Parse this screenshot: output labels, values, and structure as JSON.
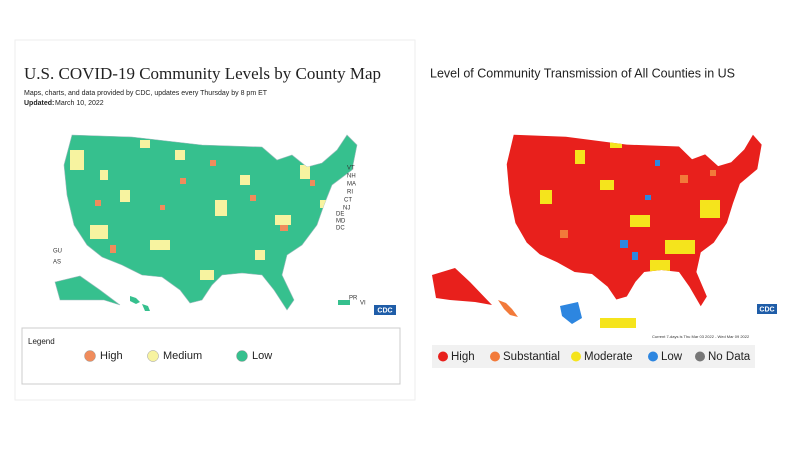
{
  "left_panel": {
    "title": "U.S. COVID-19 Community Levels by County Map",
    "subtitle": "Maps, charts, and data provided by CDC, updates every Thursday by 8 pm ET",
    "updated_label": "Updated:",
    "updated_date": "March 10, 2022",
    "map_labels": [
      "VT",
      "NH",
      "MA",
      "RI",
      "CT",
      "NJ",
      "DE",
      "MD",
      "DC",
      "GU",
      "AS",
      "PR",
      "VI"
    ],
    "logo": "CDC",
    "legend": {
      "title": "Legend",
      "items": [
        {
          "label": "High",
          "color": "#f08c5c"
        },
        {
          "label": "Medium",
          "color": "#f7f3a0"
        },
        {
          "label": "Low",
          "color": "#36c08e"
        }
      ]
    }
  },
  "right_panel": {
    "title": "Level of Community Transmission of All Counties in US",
    "footnote": "Current 7-days is Thu Mar 03 2022 - Wed Mar 09 2022",
    "logo": "CDC",
    "legend": {
      "items": [
        {
          "label": "High",
          "color": "#e8201c"
        },
        {
          "label": "Substantial",
          "color": "#f27a3a"
        },
        {
          "label": "Moderate",
          "color": "#f5e41c"
        },
        {
          "label": "Low",
          "color": "#2d86e0"
        },
        {
          "label": "No Data",
          "color": "#777777"
        }
      ]
    }
  }
}
